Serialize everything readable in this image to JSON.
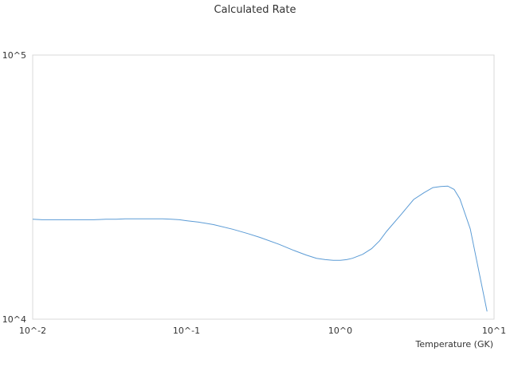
{
  "chart_data": {
    "type": "line",
    "title": "Calculated Rate",
    "xlabel": "Temperature (GK)",
    "ylabel": "",
    "x_scale": "log",
    "y_scale": "log",
    "xlim": [
      0.01,
      10
    ],
    "ylim": [
      10000,
      100000
    ],
    "x_tick_labels": [
      "10^-2",
      "10^-1",
      "10^0",
      "10^1"
    ],
    "y_tick_labels": [
      "10^4",
      "10^5"
    ],
    "grid": false,
    "legend": false,
    "line_color": "#5b9bd5",
    "series": [
      {
        "x": [
          0.01,
          0.0115,
          0.013,
          0.015,
          0.02,
          0.025,
          0.03,
          0.035,
          0.04,
          0.05,
          0.06,
          0.07,
          0.08,
          0.09,
          0.1,
          0.12,
          0.15,
          0.2,
          0.25,
          0.3,
          0.4,
          0.5,
          0.6,
          0.7,
          0.8,
          0.9,
          1.0,
          1.1,
          1.2,
          1.4,
          1.6,
          1.8,
          2.0,
          2.5,
          3.0,
          3.5,
          4.0,
          4.5,
          5.0,
          5.5,
          6.0,
          7.0,
          8.0,
          9.0
        ],
        "y": [
          23900,
          23800,
          23800,
          23800,
          23800,
          23800,
          23900,
          23900,
          24000,
          24000,
          24000,
          24000,
          23900,
          23800,
          23600,
          23300,
          22800,
          21900,
          21100,
          20400,
          19200,
          18200,
          17500,
          17000,
          16800,
          16700,
          16700,
          16800,
          17000,
          17600,
          18500,
          19800,
          21500,
          25000,
          28400,
          30100,
          31500,
          31800,
          31900,
          31000,
          28500,
          22000,
          15000,
          10700
        ]
      }
    ]
  }
}
